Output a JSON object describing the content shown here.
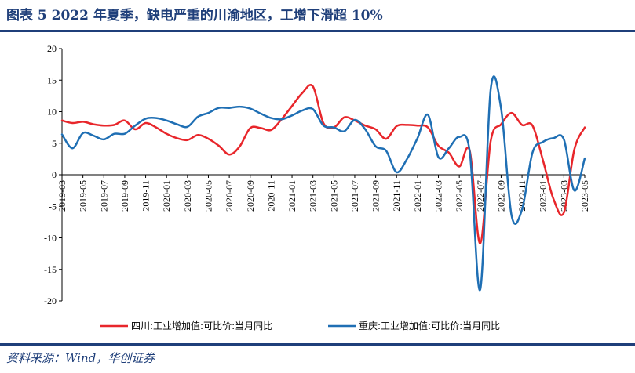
{
  "header": {
    "title": "图表 5   2022 年夏季，缺电严重的川渝地区，工增下滑超 10%"
  },
  "footer": {
    "source": "资料来源：Wind，华创证券"
  },
  "colors": {
    "brand": "#1f3f7a",
    "series_1": "#e8262b",
    "series_2": "#1f6fb4"
  },
  "chart_data": {
    "type": "line",
    "title": "",
    "ylim": [
      -20,
      20
    ],
    "yticks": [
      -20,
      -15,
      -10,
      -5,
      0,
      5,
      10,
      15,
      20
    ],
    "xtick_labels": [
      "2019-03",
      "2019-05",
      "2019-07",
      "2019-09",
      "2019-11",
      "2020-01",
      "2020-03",
      "2020-05",
      "2020-07",
      "2020-09",
      "2020-11",
      "2021-01",
      "2021-03",
      "2021-05",
      "2021-07",
      "2021-09",
      "2021-11",
      "2022-01",
      "2022-03",
      "2022-05",
      "2022-07",
      "2022-09",
      "2022-11",
      "2023-01",
      "2023-03",
      "2023-05"
    ],
    "x": [
      "2019-03",
      "2019-04",
      "2019-05",
      "2019-06",
      "2019-07",
      "2019-08",
      "2019-09",
      "2019-10",
      "2019-11",
      "2019-12",
      "2020-01",
      "2020-02",
      "2020-03",
      "2020-04",
      "2020-05",
      "2020-06",
      "2020-07",
      "2020-08",
      "2020-09",
      "2020-10",
      "2020-11",
      "2020-12",
      "2021-01",
      "2021-02",
      "2021-03",
      "2021-04",
      "2021-05",
      "2021-06",
      "2021-07",
      "2021-08",
      "2021-09",
      "2021-10",
      "2021-11",
      "2021-12",
      "2022-01",
      "2022-02",
      "2022-03",
      "2022-04",
      "2022-05",
      "2022-06",
      "2022-07",
      "2022-08",
      "2022-09",
      "2022-10",
      "2022-11",
      "2022-12",
      "2023-01",
      "2023-02",
      "2023-03",
      "2023-04",
      "2023-05"
    ],
    "series": [
      {
        "name": "四川:工业增加值:可比价:当月同比",
        "color": "#e8262b",
        "values": [
          8.6,
          8.2,
          8.4,
          8.0,
          7.8,
          7.9,
          8.6,
          7.2,
          8.2,
          7.5,
          6.5,
          5.8,
          5.5,
          6.3,
          5.7,
          4.6,
          3.2,
          4.5,
          7.4,
          7.4,
          7.1,
          8.8,
          10.9,
          13.0,
          14.0,
          8.2,
          7.5,
          9.1,
          8.6,
          7.8,
          7.2,
          5.7,
          7.7,
          7.9,
          7.8,
          7.5,
          4.6,
          3.5,
          1.3,
          3.8,
          -10.9,
          5.3,
          8.0,
          9.8,
          7.9,
          7.8,
          2.3,
          -3.8,
          -6.0,
          4.0,
          7.5
        ]
      },
      {
        "name": "重庆:工业增加值:可比价:当月同比",
        "color": "#1f6fb4",
        "values": [
          6.4,
          4.2,
          6.6,
          6.2,
          5.6,
          6.5,
          6.5,
          7.8,
          8.9,
          9.0,
          8.6,
          8.0,
          7.6,
          9.2,
          9.8,
          10.6,
          10.6,
          10.8,
          10.5,
          9.7,
          9.0,
          8.8,
          9.4,
          10.2,
          10.4,
          7.8,
          7.5,
          6.9,
          8.7,
          7.2,
          4.5,
          3.8,
          0.4,
          2.5,
          5.8,
          9.5,
          2.8,
          4.2,
          6.0,
          3.6,
          -18.2,
          13.5,
          10.5,
          -6.5,
          -5.5,
          3.5,
          5.2,
          5.8,
          5.6,
          -2.5,
          2.6
        ]
      }
    ],
    "grid": false,
    "legend_position": "bottom"
  }
}
